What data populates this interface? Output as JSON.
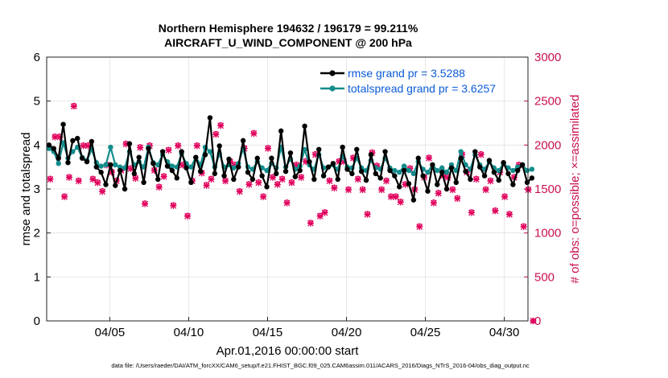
{
  "chart_data": {
    "type": "line",
    "title_line1": "Northern Hemisphere 194632 / 196179 = 99.211%",
    "title_line2": "AIRCRAFT_U_WIND_COMPONENT @ 200 hPa",
    "xlabel": "Apr.01,2016 00:00:00 start",
    "ylabel": "rmse and totalspread",
    "y2label": "# of obs: o=possible; ×=assimilated",
    "xlim": [
      1,
      31.5
    ],
    "ylim": [
      0,
      6
    ],
    "y2lim": [
      0,
      3000
    ],
    "x_ticks": [
      5,
      10,
      15,
      20,
      25,
      30
    ],
    "x_tick_labels": [
      "04/05",
      "04/10",
      "04/15",
      "04/20",
      "04/25",
      "04/30"
    ],
    "y_ticks": [
      0,
      1,
      2,
      3,
      4,
      5,
      6
    ],
    "y_tick_labels": [
      "0",
      "1",
      "2",
      "3",
      "4",
      "5",
      "6"
    ],
    "y2_ticks": [
      0,
      500,
      1000,
      1500,
      2000,
      2500,
      3000
    ],
    "y2_tick_labels": [
      "0",
      "500",
      "1000",
      "1500",
      "2000",
      "2500",
      "3000"
    ],
    "grid": true,
    "legend_position": "top-right",
    "footer": "data file: /Users/raeder/DAI/ATM_forcXX/CAM6_setup/f.e21.FHIST_BGC.f09_025.CAM6assim.011/ACARS_2016/Diags_NTrS_2016-04/obs_diag_output.nc",
    "series": [
      {
        "name": "rmse",
        "legend": "rmse grand pr = 3.5288",
        "color": "#000000",
        "axis": "left",
        "values": [
          4.0,
          3.92,
          3.7,
          4.47,
          3.6,
          4.1,
          4.15,
          3.7,
          3.62,
          4.08,
          3.5,
          3.38,
          3.1,
          3.55,
          3.08,
          3.42,
          3.0,
          4.03,
          3.35,
          3.72,
          3.15,
          3.92,
          3.58,
          3.22,
          3.85,
          3.52,
          3.42,
          3.25,
          3.85,
          3.48,
          3.15,
          3.72,
          3.4,
          3.78,
          4.62,
          3.35,
          3.98,
          3.3,
          3.68,
          3.22,
          3.5,
          4.1,
          3.38,
          3.22,
          3.7,
          3.3,
          3.05,
          3.7,
          3.35,
          4.32,
          3.4,
          3.82,
          3.28,
          3.42,
          4.43,
          3.62,
          3.22,
          3.9,
          3.3,
          3.5,
          3.58,
          3.22,
          3.95,
          3.45,
          3.35,
          3.9,
          3.4,
          3.2,
          3.78,
          3.35,
          3.25,
          3.85,
          3.42,
          3.3,
          3.05,
          3.42,
          3.12,
          2.75,
          3.7,
          3.3,
          2.95,
          3.55,
          3.1,
          3.38,
          3.0,
          3.48,
          3.15,
          3.7,
          3.4,
          3.22,
          3.85,
          3.5,
          3.3,
          3.65,
          3.38,
          3.2,
          3.6,
          3.35,
          3.1,
          3.42,
          3.55,
          3.15,
          3.25
        ]
      },
      {
        "name": "totalspread",
        "legend": "totalspread grand pr = 3.6257",
        "color": "#138c8c",
        "axis": "left",
        "values": [
          3.92,
          3.85,
          3.58,
          4.05,
          3.7,
          3.85,
          3.95,
          3.72,
          3.65,
          3.9,
          3.6,
          3.52,
          3.55,
          3.95,
          3.55,
          3.5,
          3.48,
          3.85,
          3.55,
          3.62,
          3.5,
          3.95,
          3.6,
          3.55,
          3.78,
          3.62,
          3.52,
          3.5,
          3.8,
          3.58,
          3.5,
          3.72,
          3.55,
          3.95,
          3.85,
          3.5,
          3.8,
          3.5,
          3.55,
          3.48,
          3.58,
          3.92,
          3.5,
          3.45,
          3.62,
          3.48,
          3.42,
          3.58,
          3.48,
          3.95,
          3.5,
          3.68,
          3.45,
          3.52,
          3.9,
          3.55,
          3.45,
          3.78,
          3.48,
          3.5,
          3.55,
          3.45,
          3.75,
          3.5,
          3.48,
          3.7,
          3.48,
          3.42,
          3.65,
          3.48,
          3.45,
          3.7,
          3.48,
          3.42,
          3.38,
          3.52,
          3.42,
          3.35,
          3.62,
          3.45,
          3.38,
          3.55,
          3.42,
          3.48,
          3.38,
          3.55,
          3.42,
          3.85,
          3.55,
          3.45,
          3.78,
          3.55,
          3.45,
          3.62,
          3.48,
          3.42,
          3.58,
          3.48,
          3.42,
          3.5,
          3.55,
          3.42,
          3.45
        ]
      },
      {
        "name": "possible",
        "color": "#e0005c",
        "axis": "right",
        "marker": "o",
        "values": [
          1620,
          2100,
          2100,
          1420,
          1640,
          2450,
          1600,
          2000,
          2000,
          1620,
          1580,
          1480,
          1780,
          1700,
          1600,
          1720,
          2020,
          1740,
          1630,
          1980,
          1340,
          2000,
          1720,
          1530,
          1650,
          1950,
          1320,
          2000,
          1780,
          1200,
          1600,
          2000,
          1690,
          1550,
          1620,
          2130,
          2230,
          1600,
          1820,
          1780,
          1480,
          1970,
          1560,
          2140,
          1580,
          1420,
          1970,
          1640,
          1560,
          1620,
          1350,
          1580,
          1780,
          1640,
          1820,
          1120,
          1900,
          1200,
          1240,
          1600,
          1520,
          1820,
          1820,
          1500,
          1860,
          1620,
          1500,
          1220,
          1920,
          1770,
          1500,
          1600,
          1420,
          1420,
          1360,
          1560,
          1740,
          1500,
          1080,
          1640,
          1860,
          1350,
          1460,
          1660,
          1640,
          1500,
          1400,
          1900,
          1700,
          1240,
          1620,
          1900,
          1500,
          1600,
          1260,
          1700,
          1420,
          1220,
          1640,
          1780,
          1080,
          1500,
          0
        ]
      },
      {
        "name": "assimilated",
        "color": "#e0005c",
        "axis": "right",
        "marker": "x",
        "values": [
          1610,
          2090,
          2090,
          1410,
          1630,
          2440,
          1590,
          1990,
          1990,
          1610,
          1570,
          1470,
          1770,
          1690,
          1590,
          1710,
          2010,
          1730,
          1620,
          1970,
          1330,
          1990,
          1710,
          1520,
          1640,
          1940,
          1310,
          1990,
          1770,
          1190,
          1590,
          1990,
          1680,
          1540,
          1610,
          2120,
          2220,
          1590,
          1810,
          1770,
          1470,
          1960,
          1550,
          2130,
          1570,
          1410,
          1960,
          1630,
          1550,
          1610,
          1340,
          1570,
          1770,
          1630,
          1810,
          1110,
          1890,
          1190,
          1230,
          1590,
          1510,
          1810,
          1810,
          1490,
          1850,
          1610,
          1490,
          1210,
          1910,
          1760,
          1490,
          1590,
          1410,
          1410,
          1350,
          1550,
          1730,
          1490,
          1070,
          1630,
          1850,
          1340,
          1450,
          1650,
          1630,
          1490,
          1390,
          1890,
          1690,
          1230,
          1610,
          1890,
          1490,
          1590,
          1250,
          1690,
          1410,
          1210,
          1630,
          1770,
          1070,
          1490,
          0
        ]
      }
    ]
  }
}
